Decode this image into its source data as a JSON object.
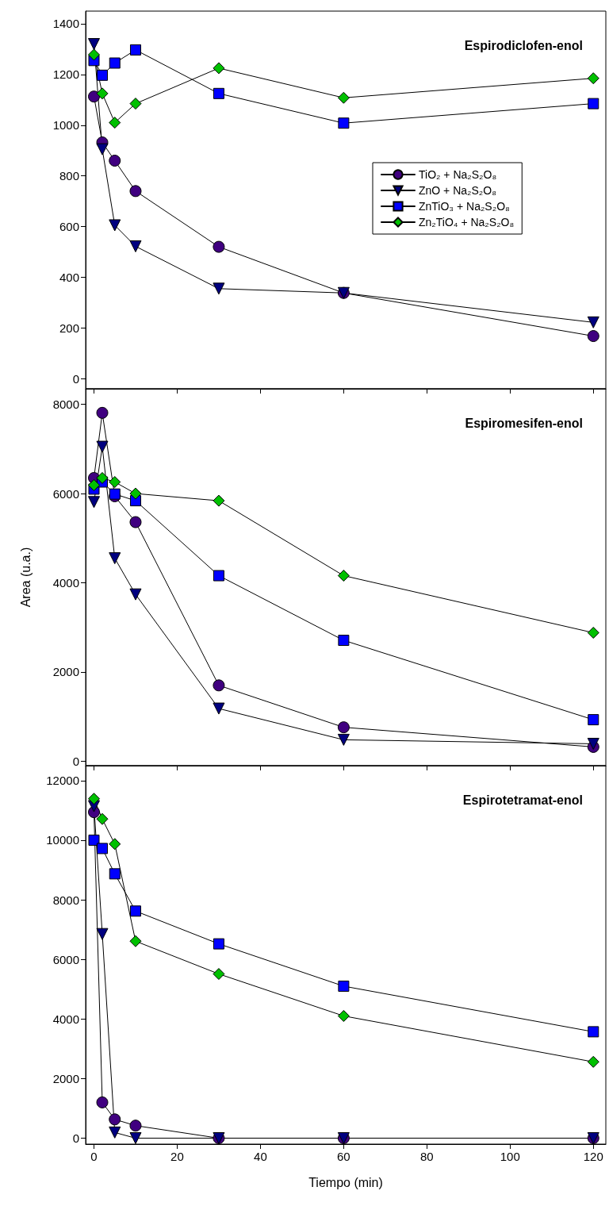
{
  "chart_data": [
    {
      "type": "line",
      "title": "Espirodiclofen-enol",
      "x": [
        0,
        2,
        5,
        10,
        30,
        60,
        120
      ],
      "xlim": [
        -2,
        123
      ],
      "xticks": [
        0,
        20,
        40,
        60,
        80,
        100,
        120
      ],
      "ylim": [
        -40,
        1450
      ],
      "yticks": [
        0,
        200,
        400,
        600,
        800,
        1000,
        1200,
        1400
      ],
      "grid": false,
      "legend": "right",
      "tick_labels": "y",
      "series": [
        {
          "name": "TiO₂ + Na₂S₂O₈",
          "color": "#400080",
          "marker": "circle",
          "values": [
            1113,
            932,
            860,
            740,
            520,
            338,
            168
          ]
        },
        {
          "name": "ZnO + Na₂S₂O₈",
          "color": "#000080",
          "marker": "triangle",
          "values": [
            1320,
            905,
            605,
            522,
            355,
            338,
            222
          ]
        },
        {
          "name": "ZnTiO₃ + Na₂S₂O₈",
          "color": "#0000ff",
          "marker": "square",
          "values": [
            1255,
            1197,
            1245,
            1297,
            1125,
            1008,
            1085
          ]
        },
        {
          "name": "Zn₂TiO₄ + Na₂S₂O₈",
          "color": "#00c000",
          "marker": "diamond",
          "values": [
            1278,
            1125,
            1010,
            1085,
            1225,
            1108,
            1185
          ]
        }
      ]
    },
    {
      "type": "line",
      "title": "Espiromesifen-enol",
      "ylabel": "Area (u.a.)",
      "x": [
        0,
        2,
        5,
        10,
        30,
        60,
        120
      ],
      "xlim": [
        -2,
        123
      ],
      "xticks": [
        0,
        20,
        40,
        60,
        80,
        100,
        120
      ],
      "ylim": [
        -100,
        8350
      ],
      "yticks": [
        0,
        2000,
        4000,
        6000,
        8000
      ],
      "grid": false,
      "tick_labels": "y",
      "series": [
        {
          "color": "#400080",
          "marker": "circle",
          "values": [
            6350,
            7810,
            5940,
            5360,
            1700,
            760,
            320
          ]
        },
        {
          "color": "#000080",
          "marker": "triangle",
          "values": [
            5810,
            7050,
            4550,
            3740,
            1180,
            480,
            390
          ]
        },
        {
          "color": "#0000ff",
          "marker": "square",
          "values": [
            6100,
            6260,
            5990,
            5840,
            4160,
            2710,
            930
          ]
        },
        {
          "color": "#00c000",
          "marker": "diamond",
          "values": [
            6190,
            6350,
            6260,
            6000,
            5840,
            4160,
            2880
          ]
        }
      ]
    },
    {
      "type": "line",
      "title": "Espirotetramat-enol",
      "xlabel": "Tiempo (min)",
      "x": [
        0,
        2,
        5,
        10,
        30,
        60,
        120
      ],
      "xlim": [
        -2,
        123
      ],
      "xticks": [
        0,
        20,
        40,
        60,
        80,
        100,
        120
      ],
      "ylim": [
        -200,
        12500
      ],
      "yticks": [
        0,
        2000,
        4000,
        6000,
        8000,
        10000,
        12000
      ],
      "grid": false,
      "series": [
        {
          "color": "#400080",
          "marker": "circle",
          "values": [
            10940,
            1200,
            630,
            420,
            0,
            0,
            0
          ]
        },
        {
          "color": "#000080",
          "marker": "triangle",
          "values": [
            11140,
            6850,
            190,
            0,
            0,
            0,
            0
          ]
        },
        {
          "color": "#0000ff",
          "marker": "square",
          "values": [
            10000,
            9720,
            8870,
            7620,
            6520,
            5100,
            3570
          ]
        },
        {
          "color": "#00c000",
          "marker": "diamond",
          "values": [
            11390,
            10710,
            9870,
            6610,
            5510,
            4100,
            2560
          ]
        }
      ]
    }
  ]
}
